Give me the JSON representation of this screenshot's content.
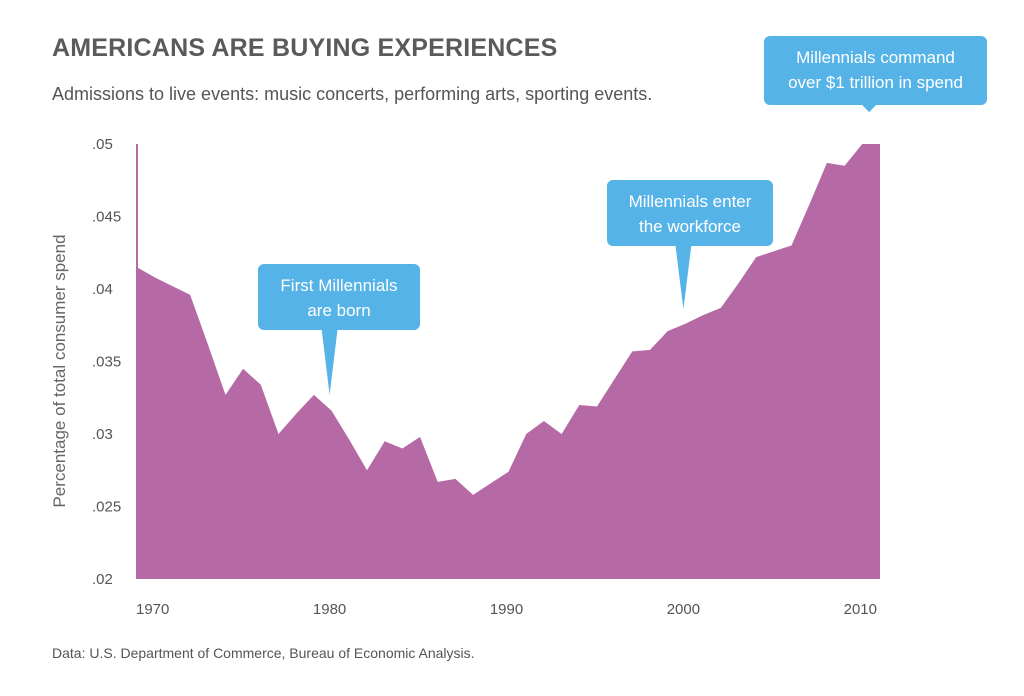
{
  "header": {
    "title": "AMERICANS ARE BUYING EXPERIENCES",
    "subtitle": "Admissions to live events: music concerts, performing arts, sporting events."
  },
  "footer": {
    "source": "Data: U.S. Department of Commerce, Bureau of Economic Analysis."
  },
  "colors": {
    "area": "#b56aa6",
    "callout": "#55b3e8",
    "axis": "#b56aa6"
  },
  "chart_data": {
    "type": "area",
    "title": "AMERICANS ARE BUYING EXPERIENCES",
    "subtitle": "Admissions to live events: music concerts, performing arts, sporting events.",
    "xlabel": "",
    "ylabel": "Percentage of total consumer spend",
    "xlim": [
      1969,
      2011
    ],
    "ylim": [
      0.02,
      0.05
    ],
    "x_ticks": [
      1970,
      1980,
      1990,
      2000,
      2010
    ],
    "x_tick_labels": [
      "1970",
      "1980",
      "1990",
      "2000",
      "2010"
    ],
    "y_ticks": [
      0.02,
      0.025,
      0.03,
      0.035,
      0.04,
      0.045,
      0.05
    ],
    "y_tick_labels": [
      ".02",
      ".025",
      ".03",
      ".035",
      ".04",
      ".045",
      ".05"
    ],
    "series": [
      {
        "name": "Admissions to live events",
        "x": [
          1969,
          1970,
          1971,
          1972,
          1973,
          1974,
          1975,
          1976,
          1977,
          1978,
          1979,
          1980,
          1981,
          1982,
          1983,
          1984,
          1985,
          1986,
          1987,
          1988,
          1989,
          1990,
          1991,
          1992,
          1993,
          1994,
          1995,
          1996,
          1997,
          1998,
          1999,
          2000,
          2001,
          2002,
          2003,
          2004,
          2005,
          2006,
          2007,
          2008,
          2009,
          2010,
          2011
        ],
        "values": [
          0.0415,
          0.0408,
          0.0402,
          0.0396,
          0.0362,
          0.0327,
          0.0345,
          0.0334,
          0.03,
          0.0314,
          0.0327,
          0.0316,
          0.0296,
          0.0275,
          0.0295,
          0.029,
          0.0298,
          0.0267,
          0.0269,
          0.0258,
          0.0266,
          0.0274,
          0.03,
          0.0309,
          0.03,
          0.032,
          0.0319,
          0.0338,
          0.0357,
          0.0358,
          0.0371,
          0.0376,
          0.0382,
          0.0387,
          0.0404,
          0.0422,
          0.0426,
          0.043,
          0.0458,
          0.0487,
          0.0485,
          0.05,
          0.05
        ]
      }
    ],
    "annotations": [
      {
        "text_lines": [
          "First Millennials",
          "are born"
        ],
        "x": 1980,
        "y": 0.0327
      },
      {
        "text_lines": [
          "Millennials enter",
          "the workforce"
        ],
        "x": 2000,
        "y": 0.0386
      },
      {
        "text_lines": [
          "Millennials command",
          "over $1 trillion in spend"
        ],
        "x": 2010.5,
        "y": 0.0522
      }
    ]
  }
}
